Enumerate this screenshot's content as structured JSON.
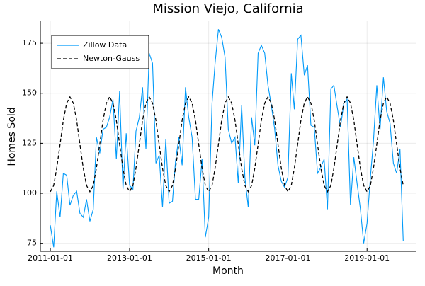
{
  "chart_data": {
    "type": "line",
    "title": "Mission Viejo, California",
    "x_label": "Month",
    "y_label": "Homes Sold",
    "x": [
      "2011-01-01",
      "2011-02-01",
      "2011-03-01",
      "2011-04-01",
      "2011-05-01",
      "2011-06-01",
      "2011-07-01",
      "2011-08-01",
      "2011-09-01",
      "2011-10-01",
      "2011-11-01",
      "2011-12-01",
      "2012-01-01",
      "2012-02-01",
      "2012-03-01",
      "2012-04-01",
      "2012-05-01",
      "2012-06-01",
      "2012-07-01",
      "2012-08-01",
      "2012-09-01",
      "2012-10-01",
      "2012-11-01",
      "2012-12-01",
      "2013-01-01",
      "2013-02-01",
      "2013-03-01",
      "2013-04-01",
      "2013-05-01",
      "2013-06-01",
      "2013-07-01",
      "2013-08-01",
      "2013-09-01",
      "2013-10-01",
      "2013-11-01",
      "2013-12-01",
      "2014-01-01",
      "2014-02-01",
      "2014-03-01",
      "2014-04-01",
      "2014-05-01",
      "2014-06-01",
      "2014-07-01",
      "2014-08-01",
      "2014-09-01",
      "2014-10-01",
      "2014-11-01",
      "2014-12-01",
      "2015-01-01",
      "2015-02-01",
      "2015-03-01",
      "2015-04-01",
      "2015-05-01",
      "2015-06-01",
      "2015-07-01",
      "2015-08-01",
      "2015-09-01",
      "2015-10-01",
      "2015-11-01",
      "2015-12-01",
      "2016-01-01",
      "2016-02-01",
      "2016-03-01",
      "2016-04-01",
      "2016-05-01",
      "2016-06-01",
      "2016-07-01",
      "2016-08-01",
      "2016-09-01",
      "2016-10-01",
      "2016-11-01",
      "2016-12-01",
      "2017-01-01",
      "2017-02-01",
      "2017-03-01",
      "2017-04-01",
      "2017-05-01",
      "2017-06-01",
      "2017-07-01",
      "2017-08-01",
      "2017-09-01",
      "2017-10-01",
      "2017-11-01",
      "2017-12-01",
      "2018-01-01",
      "2018-02-01",
      "2018-03-01",
      "2018-04-01",
      "2018-05-01",
      "2018-06-01",
      "2018-07-01",
      "2018-08-01",
      "2018-09-01",
      "2018-10-01",
      "2018-11-01",
      "2018-12-01",
      "2019-01-01",
      "2019-02-01",
      "2019-03-01",
      "2019-04-01",
      "2019-05-01",
      "2019-06-01",
      "2019-07-01",
      "2019-08-01",
      "2019-09-01",
      "2019-10-01",
      "2019-11-01",
      "2019-12-01"
    ],
    "series": [
      {
        "name": "Zillow Data",
        "color": "#009af9",
        "dash": false,
        "values": [
          84,
          73,
          101,
          88,
          110,
          109,
          94,
          99,
          101,
          90,
          88,
          97,
          86,
          92,
          128,
          120,
          132,
          133,
          138,
          147,
          117,
          151,
          102,
          130,
          104,
          102,
          131,
          138,
          153,
          122,
          170,
          165,
          115,
          119,
          93,
          127,
          95,
          96,
          116,
          128,
          114,
          153,
          138,
          128,
          97,
          97,
          117,
          78,
          88,
          145,
          165,
          182,
          178,
          168,
          132,
          125,
          128,
          105,
          144,
          108,
          93,
          138,
          124,
          170,
          174,
          170,
          154,
          144,
          132,
          114,
          106,
          103,
          108,
          160,
          142,
          177,
          179,
          159,
          164,
          134,
          133,
          110,
          113,
          117,
          92,
          152,
          154,
          143,
          133,
          145,
          147,
          94,
          118,
          105,
          92,
          75,
          85,
          108,
          126,
          154,
          132,
          158,
          141,
          135,
          115,
          110,
          122,
          76
        ]
      },
      {
        "name": "Newton-Gauss",
        "color": "#000000",
        "dash": true,
        "values": [
          100.8,
          103.9,
          112.5,
          124.5,
          136.5,
          145.1,
          148.2,
          145.1,
          136.5,
          124.5,
          112.5,
          103.9,
          100.8,
          103.9,
          112.5,
          124.5,
          136.5,
          145.1,
          148.2,
          145.1,
          136.5,
          124.5,
          112.5,
          103.9,
          100.8,
          103.9,
          112.5,
          124.5,
          136.5,
          145.1,
          148.2,
          145.1,
          136.5,
          124.5,
          112.5,
          103.9,
          100.8,
          103.9,
          112.5,
          124.5,
          136.5,
          145.1,
          148.2,
          145.1,
          136.5,
          124.5,
          112.5,
          103.9,
          100.8,
          103.9,
          112.5,
          124.5,
          136.5,
          145.1,
          148.2,
          145.1,
          136.5,
          124.5,
          112.5,
          103.9,
          100.8,
          103.9,
          112.5,
          124.5,
          136.5,
          145.1,
          148.2,
          145.1,
          136.5,
          124.5,
          112.5,
          103.9,
          100.8,
          103.9,
          112.5,
          124.5,
          136.5,
          145.1,
          148.2,
          145.1,
          136.5,
          124.5,
          112.5,
          103.9,
          100.8,
          103.9,
          112.5,
          124.5,
          136.5,
          145.1,
          148.2,
          145.1,
          136.5,
          124.5,
          112.5,
          103.9,
          100.8,
          103.9,
          112.5,
          124.5,
          136.5,
          145.1,
          148.2,
          145.1,
          136.5,
          124.5,
          112.5,
          103.9
        ]
      }
    ],
    "xlim": [
      "2010-10-01",
      "2020-04-01"
    ],
    "xticks": [
      "2011-01-01",
      "2013-01-01",
      "2015-01-01",
      "2017-01-01",
      "2019-01-01"
    ],
    "ylim": [
      71,
      186
    ],
    "yticks": [
      75,
      100,
      125,
      150,
      175
    ],
    "grid": true,
    "legend_position": "top-left"
  }
}
